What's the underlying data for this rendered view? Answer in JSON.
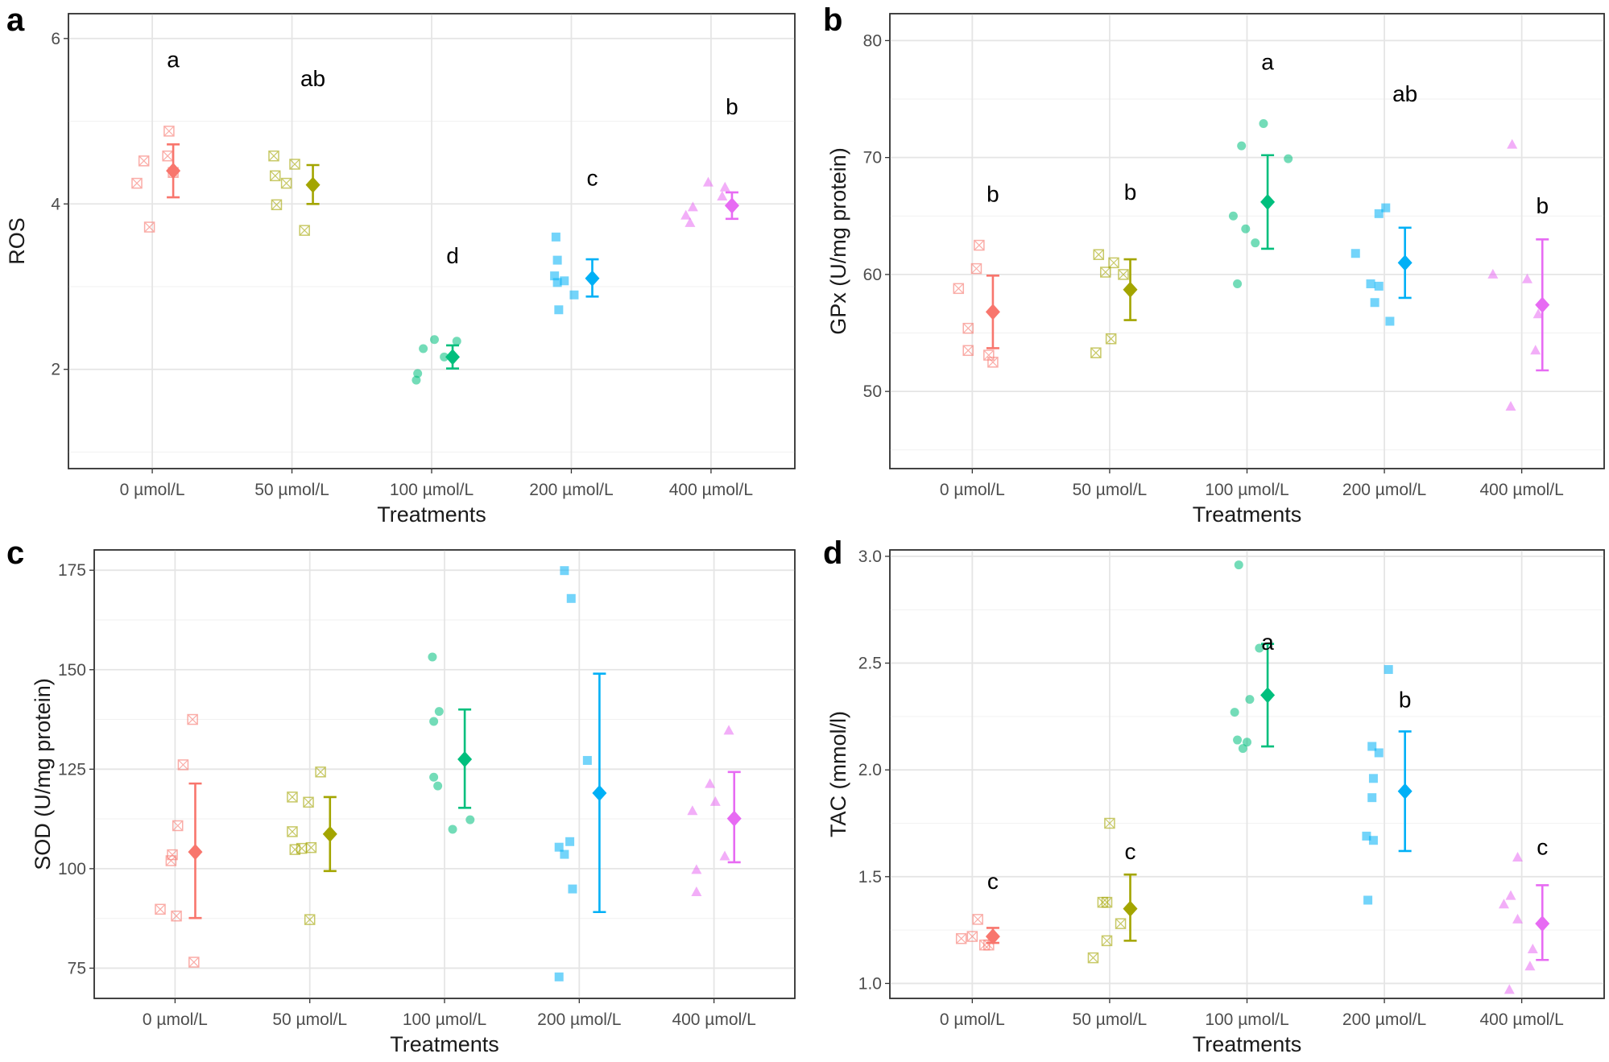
{
  "figure": {
    "colors": {
      "0 µmol/L": "#F8766D",
      "50 µmol/L": "#A3A500",
      "100 µmol/L": "#00BF7D",
      "200 µmol/L": "#00B0F6",
      "400 µmol/L": "#E76BF3"
    }
  },
  "chart_data": [
    {
      "panel": "a",
      "type": "scatter",
      "xlabel": "Treatments",
      "ylabel": "ROS",
      "categories": [
        "0 µmol/L",
        "50 µmol/L",
        "100 µmol/L",
        "200 µmol/L",
        "400 µmol/L"
      ],
      "ylim": [
        0.8,
        6.3
      ],
      "yticks": [
        2,
        4,
        6
      ],
      "means": [
        4.4,
        4.23,
        2.15,
        3.1,
        3.98
      ],
      "errors": [
        [
          4.08,
          4.72
        ],
        [
          4.0,
          4.47
        ],
        [
          2.01,
          2.29
        ],
        [
          2.88,
          3.33
        ],
        [
          3.82,
          4.14
        ]
      ],
      "letters": [
        "a",
        "ab",
        "d",
        "c",
        "b"
      ],
      "letter_y": [
        5.75,
        5.52,
        3.38,
        4.32,
        5.18
      ],
      "points": [
        [
          {
            "dx": 0.12,
            "y": 4.88
          },
          {
            "dx": 0.11,
            "y": 4.58
          },
          {
            "dx": 0.15,
            "y": 4.38
          },
          {
            "dx": -0.11,
            "y": 4.25
          },
          {
            "dx": -0.02,
            "y": 3.72
          },
          {
            "dx": -0.06,
            "y": 4.52
          }
        ],
        [
          {
            "dx": -0.13,
            "y": 4.58
          },
          {
            "dx": -0.12,
            "y": 4.34
          },
          {
            "dx": 0.02,
            "y": 4.48
          },
          {
            "dx": -0.04,
            "y": 4.25
          },
          {
            "dx": -0.11,
            "y": 3.99
          },
          {
            "dx": 0.09,
            "y": 3.68
          }
        ],
        [
          {
            "dx": 0.02,
            "y": 2.36
          },
          {
            "dx": -0.06,
            "y": 2.25
          },
          {
            "dx": 0.09,
            "y": 2.15
          },
          {
            "dx": 0.18,
            "y": 2.34
          },
          {
            "dx": -0.1,
            "y": 1.95
          },
          {
            "dx": -0.11,
            "y": 1.87
          }
        ],
        [
          {
            "dx": -0.1,
            "y": 3.32
          },
          {
            "dx": -0.12,
            "y": 3.13
          },
          {
            "dx": -0.05,
            "y": 3.07
          },
          {
            "dx": -0.1,
            "y": 3.05
          },
          {
            "dx": -0.09,
            "y": 2.72
          },
          {
            "dx": 0.02,
            "y": 2.9
          },
          {
            "dx": -0.11,
            "y": 3.6
          }
        ],
        [
          {
            "dx": -0.02,
            "y": 4.26
          },
          {
            "dx": 0.1,
            "y": 4.2
          },
          {
            "dx": 0.08,
            "y": 4.09
          },
          {
            "dx": -0.18,
            "y": 3.86
          },
          {
            "dx": -0.13,
            "y": 3.96
          },
          {
            "dx": -0.15,
            "y": 3.77
          }
        ]
      ]
    },
    {
      "panel": "b",
      "type": "scatter",
      "xlabel": "Treatments",
      "ylabel": "GPx (U/mg protein)",
      "categories": [
        "0 µmol/L",
        "50 µmol/L",
        "100 µmol/L",
        "200 µmol/L",
        "400 µmol/L"
      ],
      "ylim": [
        43.4,
        82.3
      ],
      "yticks": [
        50,
        60,
        70,
        80
      ],
      "means": [
        56.8,
        58.7,
        66.2,
        61.0,
        57.4
      ],
      "errors": [
        [
          53.7,
          59.9
        ],
        [
          56.1,
          61.3
        ],
        [
          62.2,
          70.2
        ],
        [
          58.0,
          64.0
        ],
        [
          51.8,
          63.0
        ]
      ],
      "letters": [
        "b",
        "b",
        "a",
        "ab",
        "b"
      ],
      "letter_y": [
        66.9,
        67.1,
        78.2,
        75.5,
        65.9
      ],
      "points": [
        [
          {
            "dx": 0.05,
            "y": 62.5
          },
          {
            "dx": 0.03,
            "y": 60.5
          },
          {
            "dx": -0.1,
            "y": 58.8
          },
          {
            "dx": -0.03,
            "y": 55.4
          },
          {
            "dx": 0.12,
            "y": 53.1
          },
          {
            "dx": -0.03,
            "y": 53.5
          },
          {
            "dx": 0.15,
            "y": 52.5
          }
        ],
        [
          {
            "dx": -0.08,
            "y": 61.7
          },
          {
            "dx": 0.03,
            "y": 61.0
          },
          {
            "dx": -0.03,
            "y": 60.2
          },
          {
            "dx": 0.1,
            "y": 60.0
          },
          {
            "dx": -0.1,
            "y": 53.3
          },
          {
            "dx": 0.01,
            "y": 54.5
          }
        ],
        [
          {
            "dx": 0.12,
            "y": 72.9
          },
          {
            "dx": -0.04,
            "y": 71.0
          },
          {
            "dx": 0.3,
            "y": 69.9
          },
          {
            "dx": -0.1,
            "y": 65.0
          },
          {
            "dx": -0.01,
            "y": 63.9
          },
          {
            "dx": 0.06,
            "y": 62.7
          },
          {
            "dx": -0.07,
            "y": 59.2
          }
        ],
        [
          {
            "dx": 0.01,
            "y": 65.7
          },
          {
            "dx": -0.04,
            "y": 65.2
          },
          {
            "dx": -0.21,
            "y": 61.8
          },
          {
            "dx": -0.1,
            "y": 59.2
          },
          {
            "dx": -0.04,
            "y": 59.0
          },
          {
            "dx": -0.07,
            "y": 57.6
          },
          {
            "dx": 0.04,
            "y": 56.0
          }
        ],
        [
          {
            "dx": -0.21,
            "y": 60.0
          },
          {
            "dx": -0.07,
            "y": 71.1
          },
          {
            "dx": 0.04,
            "y": 59.6
          },
          {
            "dx": 0.12,
            "y": 56.6
          },
          {
            "dx": 0.1,
            "y": 53.5
          },
          {
            "dx": -0.08,
            "y": 48.7
          }
        ]
      ]
    },
    {
      "panel": "c",
      "type": "scatter",
      "xlabel": "Treatments",
      "ylabel": "SOD (U/mg protein)",
      "categories": [
        "0 µmol/L",
        "50 µmol/L",
        "100 µmol/L",
        "200 µmol/L",
        "400 µmol/L"
      ],
      "ylim": [
        67.4,
        180.1
      ],
      "yticks": [
        75,
        100,
        125,
        150,
        175
      ],
      "means": [
        104.2,
        108.7,
        127.5,
        119.0,
        112.6
      ],
      "errors": [
        [
          87.6,
          121.4
        ],
        [
          99.4,
          118.0
        ],
        [
          115.3,
          140.0
        ],
        [
          89.1,
          149.0
        ],
        [
          101.6,
          124.3
        ]
      ],
      "letters": [
        "",
        "",
        "",
        "",
        ""
      ],
      "letter_y": [
        0,
        0,
        0,
        0,
        0
      ],
      "points": [
        [
          {
            "dx": 0.13,
            "y": 137.5
          },
          {
            "dx": 0.06,
            "y": 126.1
          },
          {
            "dx": 0.02,
            "y": 110.8
          },
          {
            "dx": -0.02,
            "y": 103.5
          },
          {
            "dx": -0.03,
            "y": 102.0
          },
          {
            "dx": -0.11,
            "y": 89.8
          },
          {
            "dx": 0.01,
            "y": 88.1
          },
          {
            "dx": 0.14,
            "y": 76.5
          }
        ],
        [
          {
            "dx": -0.13,
            "y": 118.0
          },
          {
            "dx": 0.08,
            "y": 124.3
          },
          {
            "dx": -0.01,
            "y": 116.7
          },
          {
            "dx": -0.13,
            "y": 109.3
          },
          {
            "dx": -0.11,
            "y": 104.8
          },
          {
            "dx": -0.06,
            "y": 105.1
          },
          {
            "dx": 0.01,
            "y": 105.3
          },
          {
            "dx": 0.0,
            "y": 87.2
          }
        ],
        [
          {
            "dx": -0.09,
            "y": 153.2
          },
          {
            "dx": -0.04,
            "y": 139.5
          },
          {
            "dx": -0.08,
            "y": 137.0
          },
          {
            "dx": -0.08,
            "y": 123.0
          },
          {
            "dx": -0.05,
            "y": 120.8
          },
          {
            "dx": 0.06,
            "y": 109.9
          },
          {
            "dx": 0.19,
            "y": 112.3
          }
        ],
        [
          {
            "dx": -0.11,
            "y": 174.9
          },
          {
            "dx": -0.06,
            "y": 167.9
          },
          {
            "dx": 0.06,
            "y": 127.2
          },
          {
            "dx": -0.15,
            "y": 105.4
          },
          {
            "dx": -0.07,
            "y": 106.8
          },
          {
            "dx": -0.11,
            "y": 103.6
          },
          {
            "dx": -0.05,
            "y": 94.9
          },
          {
            "dx": -0.15,
            "y": 72.8
          }
        ],
        [
          {
            "dx": -0.16,
            "y": 114.5
          },
          {
            "dx": -0.03,
            "y": 121.3
          },
          {
            "dx": 0.11,
            "y": 134.7
          },
          {
            "dx": -0.13,
            "y": 99.7
          },
          {
            "dx": 0.08,
            "y": 103.1
          },
          {
            "dx": -0.13,
            "y": 94.1
          },
          {
            "dx": 0.01,
            "y": 116.8
          }
        ]
      ]
    },
    {
      "panel": "d",
      "type": "scatter",
      "xlabel": "Treatments",
      "ylabel": "TAC (mmol/l)",
      "categories": [
        "0 µmol/L",
        "50 µmol/L",
        "100 µmol/L",
        "200 µmol/L",
        "400 µmol/L"
      ],
      "ylim": [
        0.93,
        3.03
      ],
      "yticks": [
        1.0,
        1.5,
        2.0,
        2.5,
        3.0
      ],
      "tick_labels": [
        "1.0",
        "1.5",
        "2.0",
        "2.5",
        "3.0"
      ],
      "means": [
        1.22,
        1.35,
        2.35,
        1.9,
        1.28
      ],
      "errors": [
        [
          1.19,
          1.26
        ],
        [
          1.2,
          1.51
        ],
        [
          2.11,
          2.59
        ],
        [
          1.62,
          2.18
        ],
        [
          1.11,
          1.46
        ]
      ],
      "letters": [
        "c",
        "c",
        "a",
        "b",
        "c"
      ],
      "letter_y": [
        1.48,
        1.62,
        2.6,
        2.33,
        1.64
      ],
      "points": [
        [
          {
            "dx": 0.04,
            "y": 1.3
          },
          {
            "dx": -0.08,
            "y": 1.21
          },
          {
            "dx": 0.09,
            "y": 1.18
          },
          {
            "dx": 0.12,
            "y": 1.18
          },
          {
            "dx": 0.0,
            "y": 1.22
          }
        ],
        [
          {
            "dx": 0.0,
            "y": 1.75
          },
          {
            "dx": -0.05,
            "y": 1.38
          },
          {
            "dx": -0.02,
            "y": 1.38
          },
          {
            "dx": 0.08,
            "y": 1.28
          },
          {
            "dx": -0.02,
            "y": 1.2
          },
          {
            "dx": -0.12,
            "y": 1.12
          }
        ],
        [
          {
            "dx": -0.06,
            "y": 2.96
          },
          {
            "dx": 0.09,
            "y": 2.57
          },
          {
            "dx": -0.09,
            "y": 2.27
          },
          {
            "dx": 0.02,
            "y": 2.33
          },
          {
            "dx": -0.07,
            "y": 2.14
          },
          {
            "dx": -0.03,
            "y": 2.1
          },
          {
            "dx": 0.0,
            "y": 2.13
          }
        ],
        [
          {
            "dx": 0.03,
            "y": 2.47
          },
          {
            "dx": -0.09,
            "y": 2.11
          },
          {
            "dx": -0.04,
            "y": 2.08
          },
          {
            "dx": -0.08,
            "y": 1.96
          },
          {
            "dx": -0.09,
            "y": 1.87
          },
          {
            "dx": -0.13,
            "y": 1.69
          },
          {
            "dx": -0.08,
            "y": 1.67
          },
          {
            "dx": -0.12,
            "y": 1.39
          }
        ],
        [
          {
            "dx": -0.03,
            "y": 1.59
          },
          {
            "dx": -0.08,
            "y": 1.41
          },
          {
            "dx": -0.13,
            "y": 1.37
          },
          {
            "dx": -0.03,
            "y": 1.3
          },
          {
            "dx": 0.08,
            "y": 1.16
          },
          {
            "dx": 0.06,
            "y": 1.08
          },
          {
            "dx": -0.09,
            "y": 0.97
          }
        ]
      ]
    }
  ]
}
